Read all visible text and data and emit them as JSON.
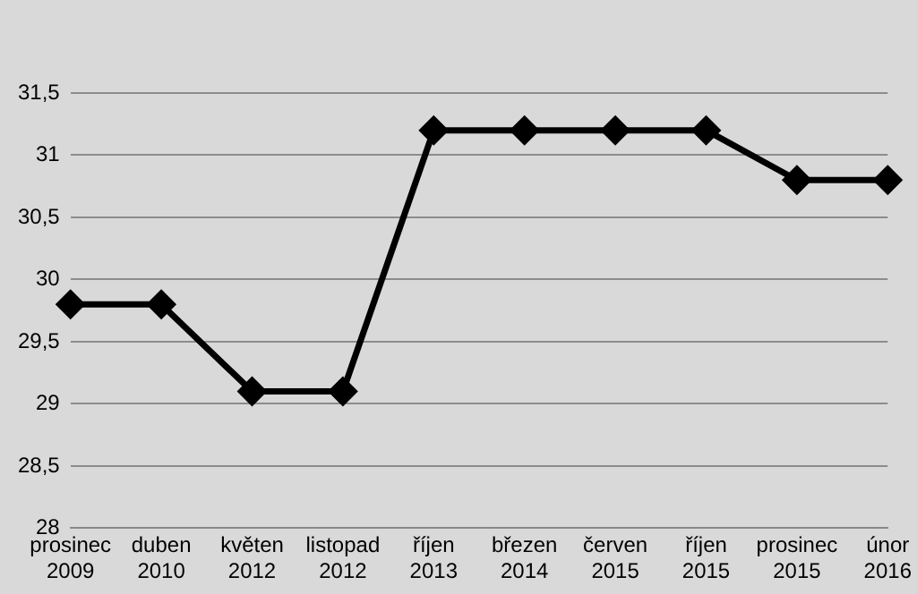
{
  "chart_data": {
    "type": "line",
    "categories": [
      "prosinec 2009",
      "duben 2010",
      "květen 2012",
      "listopad 2012",
      "říjen 2013",
      "březen 2014",
      "červen 2015",
      "říjen 2015",
      "prosinec 2015",
      "únor 2016"
    ],
    "series": [
      {
        "color": "#000000",
        "values": [
          29.8,
          29.8,
          29.1,
          29.1,
          31.2,
          31.2,
          31.2,
          31.2,
          30.8,
          30.8
        ]
      }
    ],
    "ylim": [
      28,
      31.5
    ],
    "yticks": [
      28,
      {
        "value": 28.5,
        "label": "28,5"
      },
      29,
      {
        "value": 29.5,
        "label": "29,5"
      },
      30,
      {
        "value": 30.5,
        "label": "30,5"
      },
      31,
      {
        "value": 31.5,
        "label": "31,5"
      }
    ],
    "grid": "y",
    "legend": false,
    "marker": "diamond",
    "line_style": "solid"
  }
}
